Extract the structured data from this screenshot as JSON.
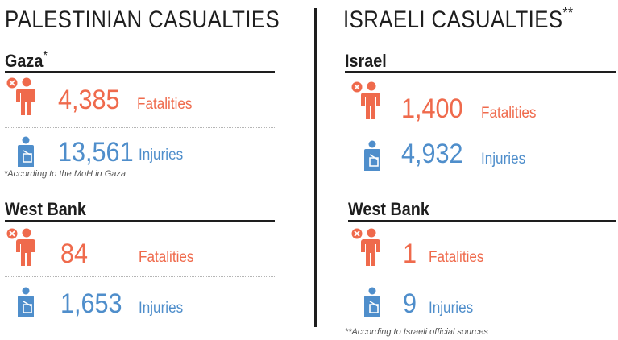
{
  "palestinian": {
    "title": "PALESTINIAN CASUALTIES",
    "gaza": {
      "name": "Gaza",
      "marker": "*",
      "fatalities": {
        "value": "4,385",
        "label": "Fatalities"
      },
      "injuries": {
        "value": "13,561",
        "label": "Injuries"
      },
      "footnote": "*According to the MoH in Gaza"
    },
    "west_bank": {
      "name": "West Bank",
      "fatalities": {
        "value": "84",
        "label": "Fatalities"
      },
      "injuries": {
        "value": "1,653",
        "label": "Injuries"
      }
    }
  },
  "israeli": {
    "title": "ISRAELI CASUALTIES",
    "marker": "**",
    "israel": {
      "name": "Israel",
      "fatalities": {
        "value": "1,400",
        "label": "Fatalities"
      },
      "injuries": {
        "value": "4,932",
        "label": "Injuries"
      }
    },
    "west_bank": {
      "name": "West Bank",
      "fatalities": {
        "value": "1",
        "label": "Fatalities"
      },
      "injuries": {
        "value": "9",
        "label": "Injuries"
      }
    },
    "footnote": "**According to Israeli official sources"
  },
  "colors": {
    "fatality": "#ef6a4c",
    "injury": "#4f8ecb",
    "heading": "#1e1e1e"
  },
  "icons": {
    "fatality": "person-with-x-icon",
    "injury": "person-with-sling-icon"
  }
}
